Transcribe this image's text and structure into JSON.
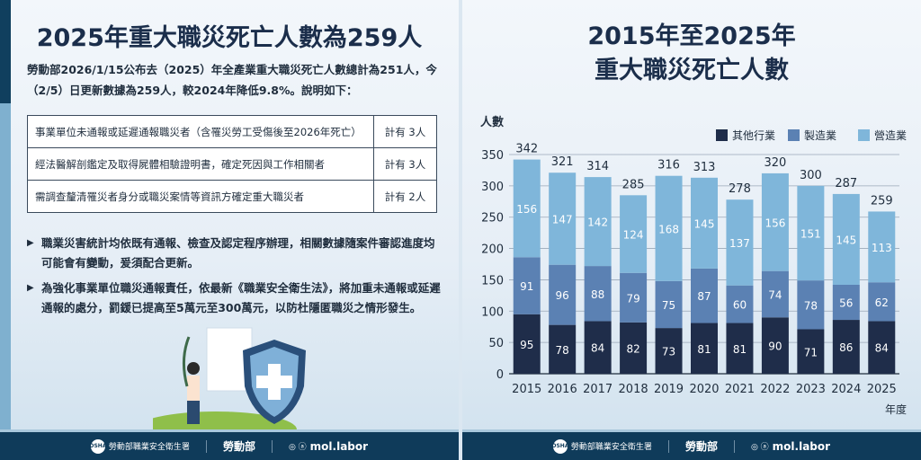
{
  "left": {
    "title": "2025年重大職災死亡人數為259人",
    "intro": "勞動部2026/1/15公布去（2025）年全產業重大職災死亡人數總計為251人，今（2/5）日更新數據為259人，較2024年降低9.8%。說明如下：",
    "table": [
      {
        "desc": "事業單位未通報或延遲通報職災者（含罹災勞工受傷後至2026年死亡）",
        "count": "計有 3人"
      },
      {
        "desc": "經法醫解剖鑑定及取得屍體相驗證明書，確定死因與工作相關者",
        "count": "計有 3人"
      },
      {
        "desc": "需調查釐清罹災者身分或職災案情等資訊方確定重大職災者",
        "count": "計有 2人"
      }
    ],
    "bullets": [
      "職業災害統計均依既有通報、檢查及認定程序辦理，相關數據隨案件審認進度均可能會有變動，爰須配合更新。",
      "為強化事業單位職災通報責任，依最新《職業安全衛生法》，將加重未通報或延遲通報的處分，罰鍰已提高至5萬元至300萬元，以防杜隱匿職災之情形發生。"
    ]
  },
  "right": {
    "title_line1": "2015年至2025年",
    "title_line2": "重大職災死亡人數"
  },
  "footer": {
    "agency": "勞動部職業安全衛生署",
    "ministry": "勞動部",
    "handle": "mol.labor"
  },
  "chart_data": {
    "type": "bar",
    "stacked": true,
    "title": "2015年至2025年 重大職災死亡人數",
    "ylabel": "人數",
    "xlabel": "年度",
    "ylim": [
      0,
      350
    ],
    "yticks": [
      0,
      50,
      100,
      150,
      200,
      250,
      300,
      350
    ],
    "categories": [
      "2015",
      "2016",
      "2017",
      "2018",
      "2019",
      "2020",
      "2021",
      "2022",
      "2023",
      "2024",
      "2025"
    ],
    "series": [
      {
        "name": "其他行業",
        "color": "#1f2d4a",
        "values": [
          95,
          78,
          84,
          82,
          73,
          81,
          81,
          90,
          71,
          86,
          84
        ]
      },
      {
        "name": "製造業",
        "color": "#5b81b3",
        "values": [
          91,
          96,
          88,
          79,
          75,
          87,
          60,
          74,
          78,
          56,
          62
        ]
      },
      {
        "name": "營造業",
        "color": "#7fb6da",
        "values": [
          156,
          147,
          142,
          124,
          168,
          145,
          137,
          156,
          151,
          145,
          113
        ]
      }
    ],
    "totals": [
      342,
      321,
      314,
      285,
      316,
      313,
      278,
      320,
      300,
      287,
      259
    ],
    "legend": "top-right"
  }
}
